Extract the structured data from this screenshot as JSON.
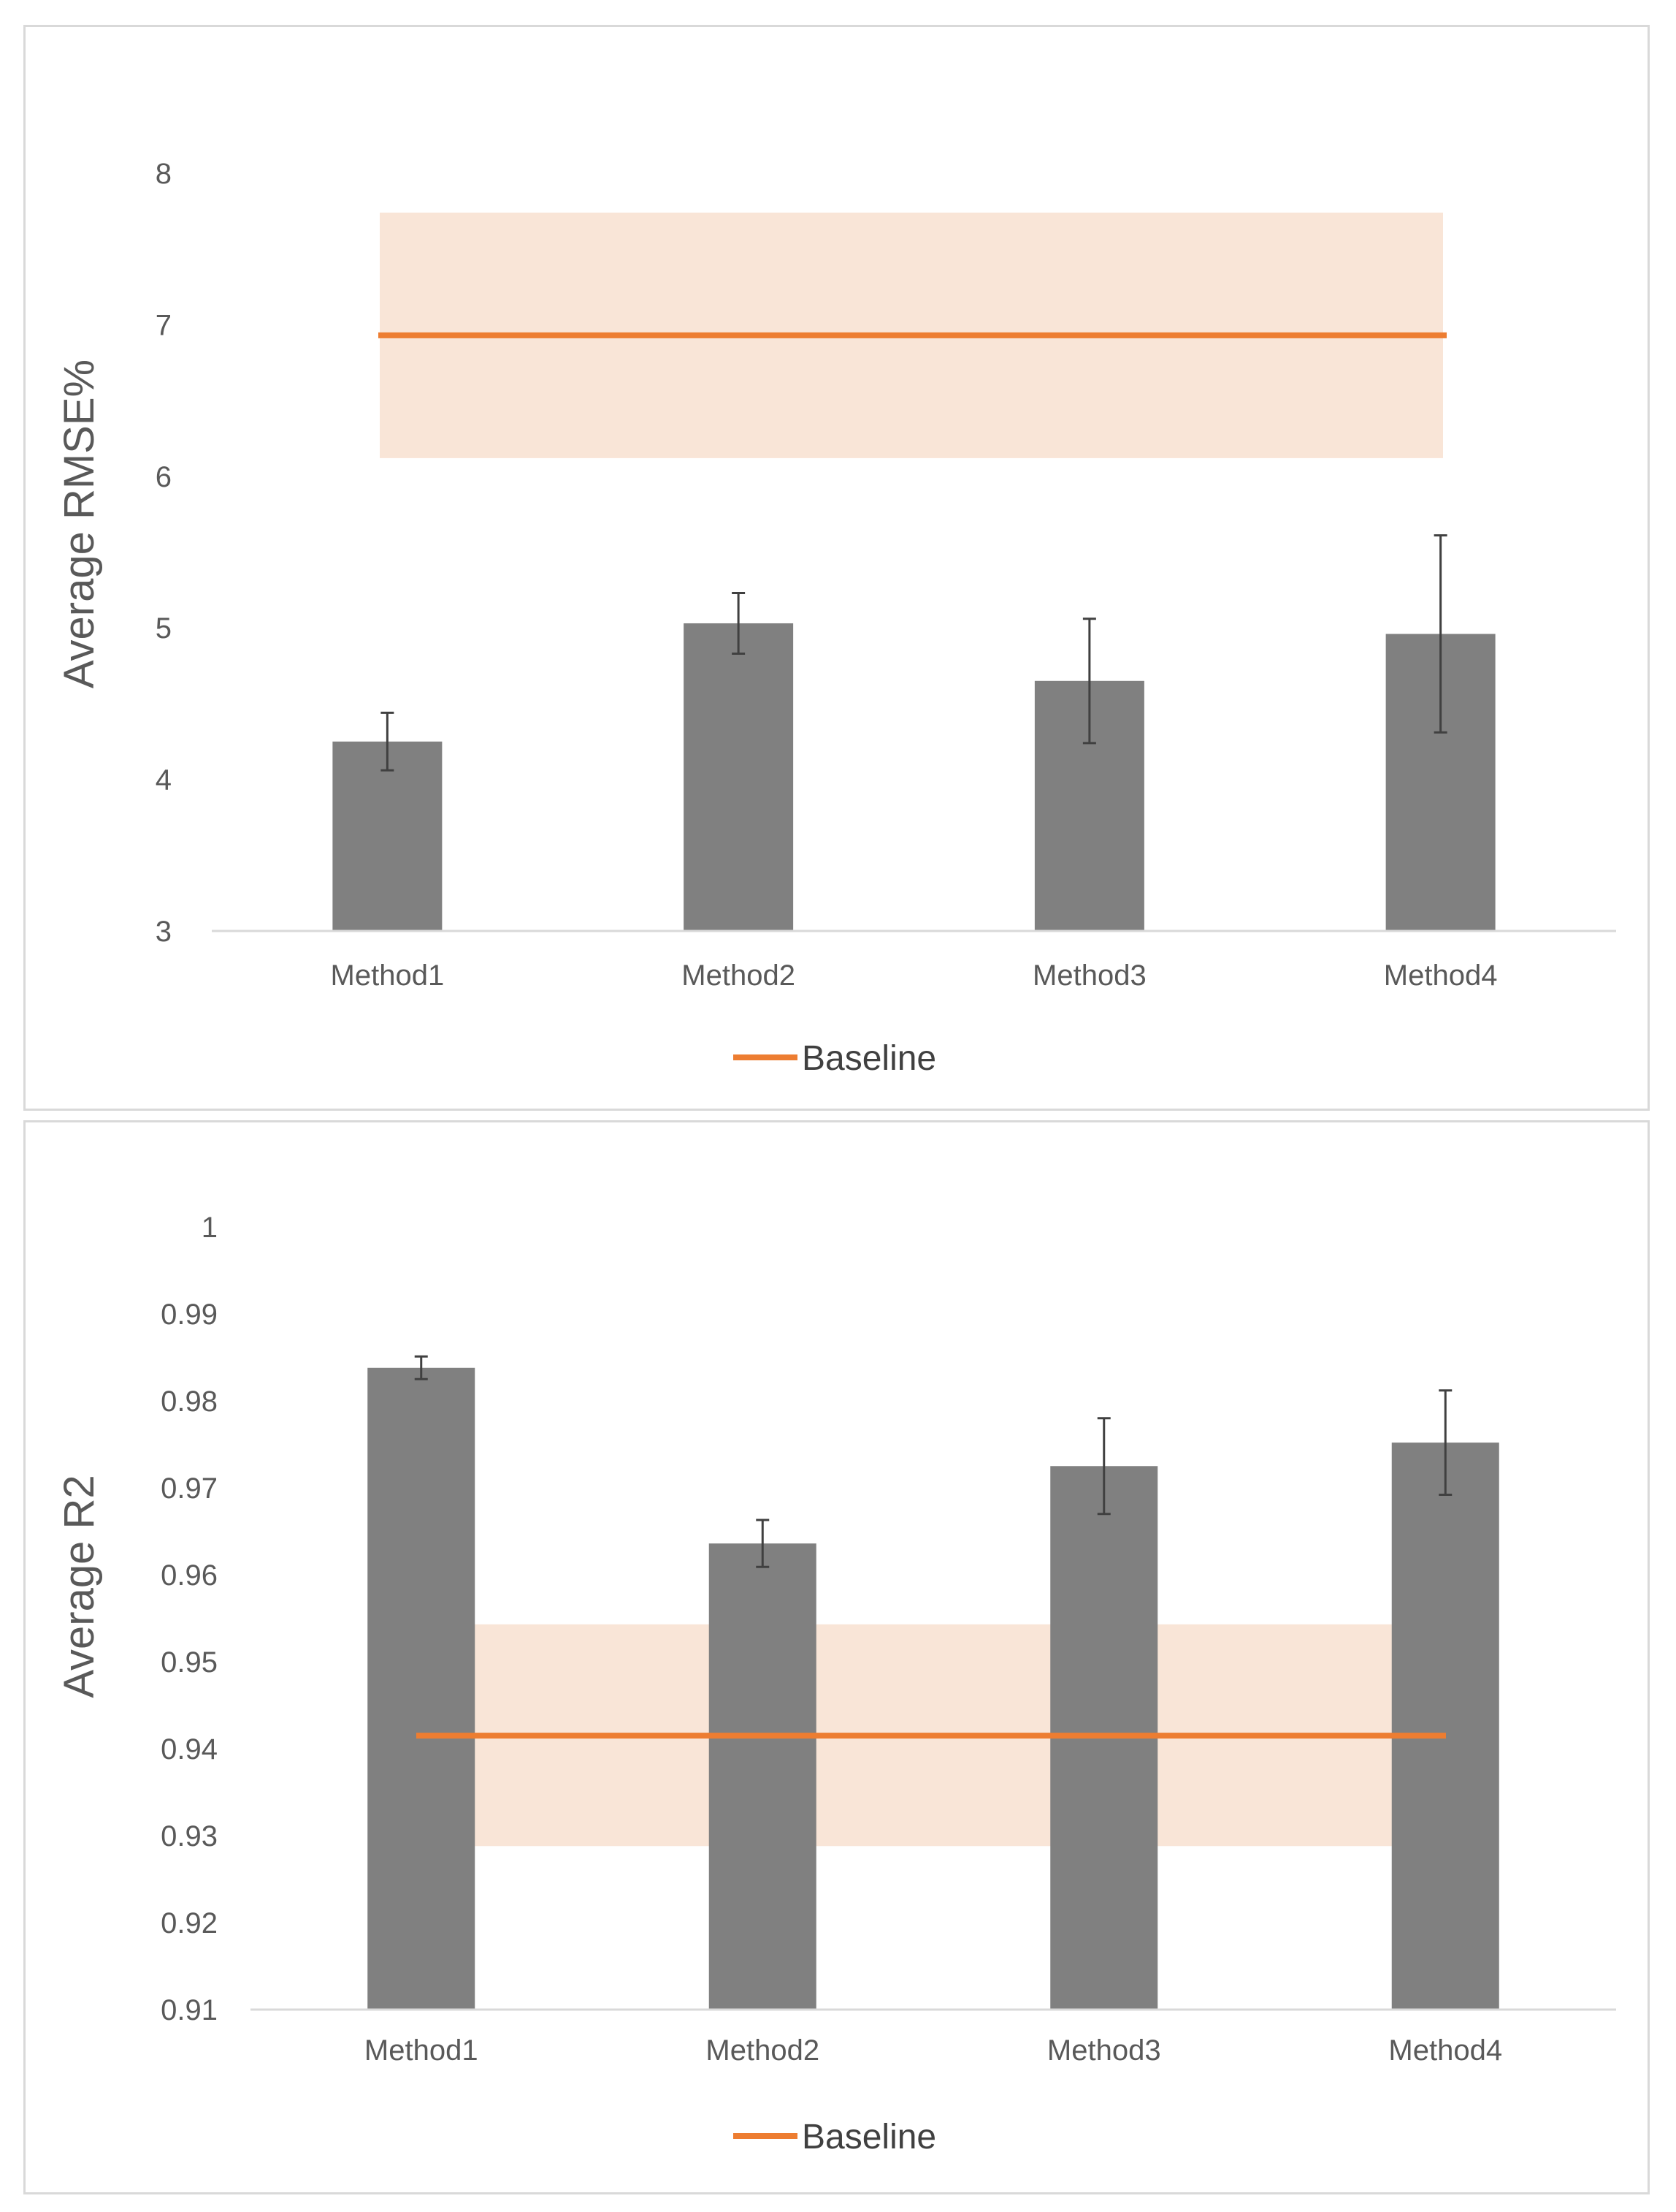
{
  "chart_data": [
    {
      "type": "bar",
      "title": "",
      "xlabel": "",
      "ylabel": "Average RMSE%",
      "ylim": [
        3,
        8
      ],
      "yticks": [
        "3",
        "4",
        "5",
        "6",
        "7",
        "8"
      ],
      "categories": [
        "Method1",
        "Method2",
        "Method3",
        "Method4"
      ],
      "series": [
        {
          "values": [
            4.25,
            5.03,
            4.65,
            4.96
          ],
          "errors": [
            0.19,
            0.2,
            0.41,
            0.65
          ],
          "color": "#808080"
        }
      ],
      "baseline": {
        "name": "Baseline",
        "value": 6.93,
        "band": [
          6.12,
          7.74
        ],
        "color": "#ED7D31",
        "band_color": "#F9E5D7"
      },
      "legend": {
        "position": "bottom",
        "entries": [
          "Baseline"
        ]
      },
      "grid": false
    },
    {
      "type": "bar",
      "title": "",
      "xlabel": "",
      "ylabel": "Average R2",
      "ylim": [
        0.91,
        1
      ],
      "yticks": [
        "0.91",
        "0.92",
        "0.93",
        "0.94",
        "0.95",
        "0.96",
        "0.97",
        "0.98",
        "0.99",
        "1"
      ],
      "categories": [
        "Method1",
        "Method2",
        "Method3",
        "Method4"
      ],
      "series": [
        {
          "values": [
            0.9838,
            0.9636,
            0.9725,
            0.9752
          ],
          "errors": [
            0.0013,
            0.0027,
            0.0055,
            0.006
          ],
          "color": "#808080"
        }
      ],
      "baseline": {
        "name": "Baseline",
        "value": 0.9415,
        "band": [
          0.9288,
          0.9543
        ],
        "color": "#ED7D31",
        "band_color": "#F9E5D7"
      },
      "legend": {
        "position": "bottom",
        "entries": [
          "Baseline"
        ]
      },
      "grid": false
    }
  ]
}
